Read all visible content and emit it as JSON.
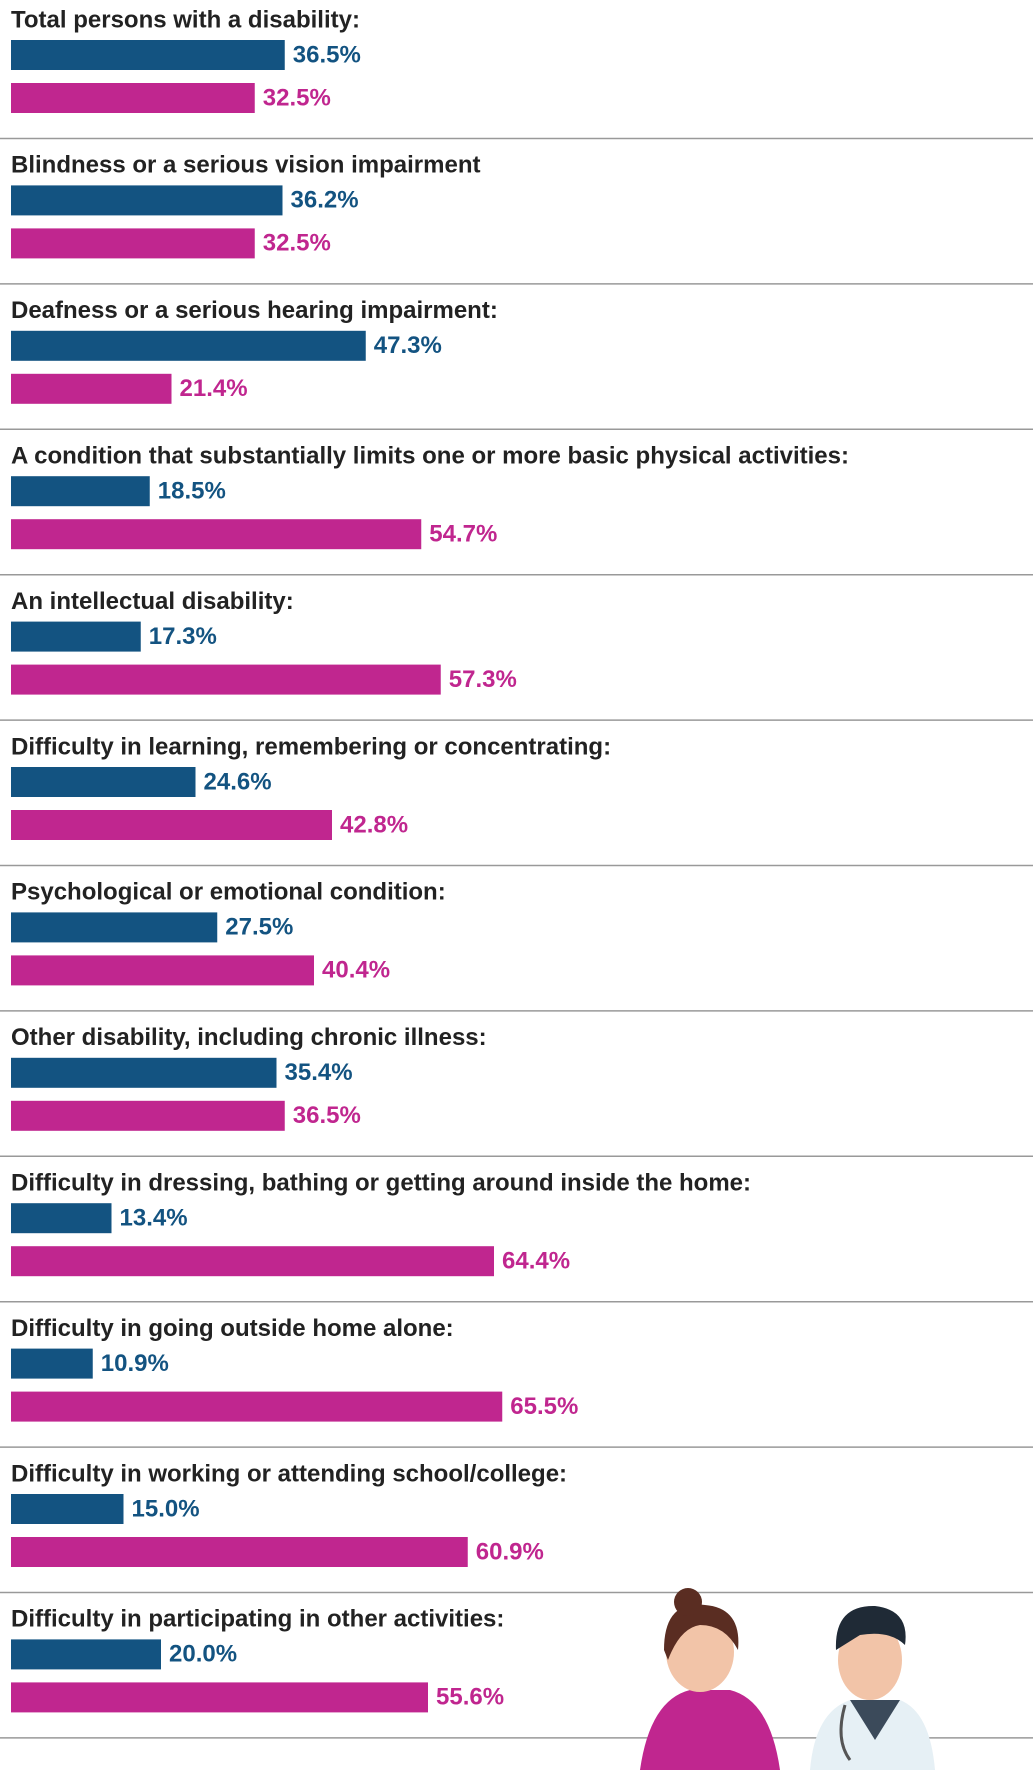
{
  "chart_data": {
    "type": "bar",
    "orientation": "horizontal",
    "categories": [
      "Total persons with a disability:",
      "Blindness or a serious vision impairment",
      "Deafness or a serious hearing impairment:",
      "A condition that substantially limits one or more basic physical activities:",
      "An intellectual disability:",
      "Difficulty in learning, remembering or concentrating:",
      "Psychological or emotional condition:",
      "Other disability, including chronic illness:",
      "Difficulty in dressing, bathing or getting around inside the home:",
      "Difficulty in going outside home alone:",
      "Difficulty in working or attending school/college:",
      "Difficulty in participating in other activities:"
    ],
    "series": [
      {
        "color": "#135381",
        "values": [
          36.5,
          36.2,
          47.3,
          18.5,
          17.3,
          24.6,
          27.5,
          35.4,
          13.4,
          10.9,
          15.0,
          20.0
        ],
        "value_labels": [
          "36.5%",
          "36.2%",
          "47.3%",
          "18.5%",
          "17.3%",
          "24.6%",
          "27.5%",
          "35.4%",
          "13.4%",
          "10.9%",
          "15.0%",
          "20.0%"
        ]
      },
      {
        "color": "#c0268f",
        "values": [
          32.5,
          32.5,
          21.4,
          54.7,
          57.3,
          42.8,
          40.4,
          36.5,
          64.4,
          65.5,
          60.9,
          55.6
        ],
        "value_labels": [
          "32.5%",
          "32.5%",
          "21.4%",
          "54.7%",
          "57.3%",
          "42.8%",
          "40.4%",
          "36.5%",
          "64.4%",
          "65.5%",
          "60.9%",
          "55.6%"
        ]
      }
    ]
  }
}
